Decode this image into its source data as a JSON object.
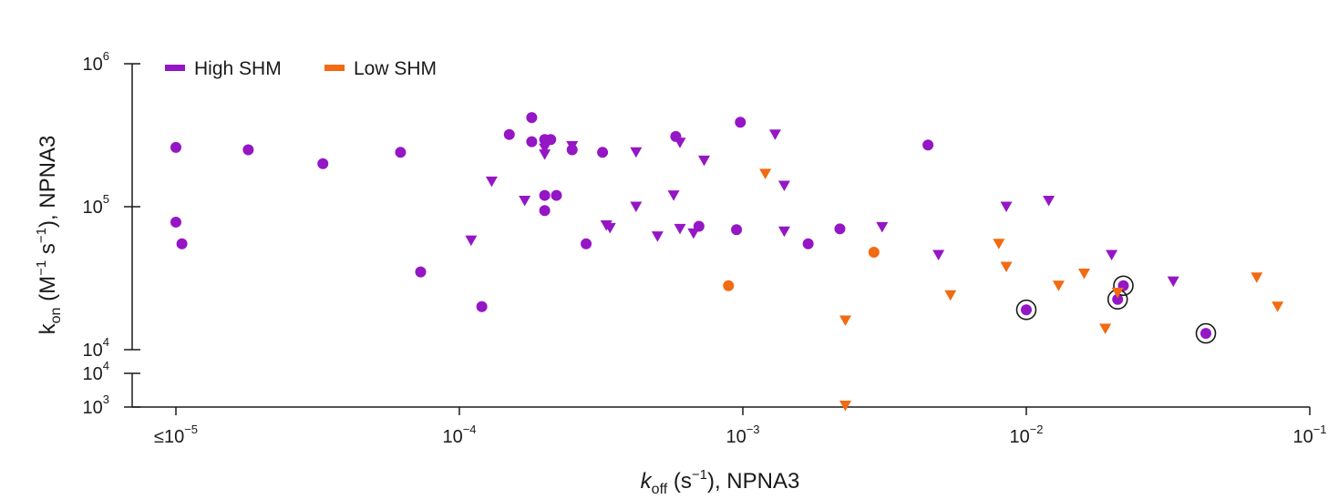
{
  "chart_data": {
    "type": "scatter",
    "xlabel": "k_off (s^-1), NPNA3",
    "xlabel_parts": {
      "k": "k",
      "sub": "off",
      "rest": " (s",
      "sup": "−1",
      "tail": "), NPNA3"
    },
    "ylabel": "k_on (M^-1 s^-1), NPNA3",
    "ylabel_parts": {
      "k": "k",
      "sub": "on",
      "a": " (M",
      "sup1": "−1",
      "b": " s",
      "sup2": "−1",
      "c": "), NPNA3"
    },
    "x_scale": "log",
    "y_scale": "log (broken axis)",
    "xlim": [
      8.5e-06,
      0.1
    ],
    "ylim_upper": [
      10000,
      1000000
    ],
    "ylim_lower": [
      1000,
      10000
    ],
    "x_ticks": [
      {
        "value": 1e-05,
        "prefix": "≤10",
        "exp": "−5"
      },
      {
        "value": 0.0001,
        "prefix": "10",
        "exp": "−4"
      },
      {
        "value": 0.001,
        "prefix": "10",
        "exp": "−3"
      },
      {
        "value": 0.01,
        "prefix": "10",
        "exp": "−2"
      },
      {
        "value": 0.1,
        "prefix": "10",
        "exp": "−1"
      }
    ],
    "y_ticks_upper": [
      {
        "value": 1000000,
        "prefix": "10",
        "exp": "6"
      },
      {
        "value": 100000,
        "prefix": "10",
        "exp": "5"
      },
      {
        "value": 10000,
        "prefix": "10",
        "exp": "4"
      }
    ],
    "y_ticks_lower": [
      {
        "value": 10000,
        "prefix": "10",
        "exp": "4"
      },
      {
        "value": 1000,
        "prefix": "10",
        "exp": "3"
      }
    ],
    "legend_placement": "top-left",
    "series": [
      {
        "name": "High SHM",
        "color": "#9416c5",
        "circles": [
          [
            1e-05,
            260000
          ],
          [
            1e-05,
            78000
          ],
          [
            1.05e-05,
            55000
          ],
          [
            1.8e-05,
            250000
          ],
          [
            3.3e-05,
            200000
          ],
          [
            6.2e-05,
            240000
          ],
          [
            7.3e-05,
            35000
          ],
          [
            0.00012,
            20000
          ],
          [
            0.00015,
            320000
          ],
          [
            0.00018,
            420000
          ],
          [
            0.00018,
            285000
          ],
          [
            0.0002,
            295000
          ],
          [
            0.00021,
            295000
          ],
          [
            0.0002,
            120000
          ],
          [
            0.00022,
            120000
          ],
          [
            0.0002,
            94000
          ],
          [
            0.00025,
            250000
          ],
          [
            0.00028,
            55000
          ],
          [
            0.00032,
            240000
          ],
          [
            0.00058,
            310000
          ],
          [
            0.0007,
            73000
          ],
          [
            0.00095,
            69000
          ],
          [
            0.00098,
            390000
          ],
          [
            0.0017,
            55000
          ],
          [
            0.0022,
            70000
          ],
          [
            0.0045,
            270000
          ],
          [
            0.01,
            19000
          ],
          [
            0.021,
            22500
          ],
          [
            0.022,
            28000
          ],
          [
            0.043,
            13000
          ]
        ],
        "triangles": [
          [
            0.00013,
            150000
          ],
          [
            0.00017,
            110000
          ],
          [
            0.0002,
            255000
          ],
          [
            0.0002,
            232000
          ],
          [
            0.00025,
            265000
          ],
          [
            0.00033,
            74000
          ],
          [
            0.00034,
            71000
          ],
          [
            0.00042,
            240000
          ],
          [
            0.00042,
            100000
          ],
          [
            0.00011,
            58000
          ],
          [
            0.0005,
            62000
          ],
          [
            0.00057,
            120000
          ],
          [
            0.0006,
            280000
          ],
          [
            0.0006,
            70000
          ],
          [
            0.00067,
            65000
          ],
          [
            0.00073,
            210000
          ],
          [
            0.0013,
            320000
          ],
          [
            0.0014,
            140000
          ],
          [
            0.0014,
            67000
          ],
          [
            0.0031,
            72000
          ],
          [
            0.0049,
            46000
          ],
          [
            0.0085,
            100000
          ],
          [
            0.012,
            110000
          ],
          [
            0.02,
            46000
          ],
          [
            0.033,
            30000
          ]
        ],
        "highlighted": [
          [
            0.01,
            19000
          ],
          [
            0.021,
            22500
          ],
          [
            0.022,
            28000
          ],
          [
            0.043,
            13000
          ]
        ]
      },
      {
        "name": "Low SHM",
        "color": "#f26a12",
        "circles": [
          [
            0.00089,
            28000
          ],
          [
            0.0029,
            48000
          ]
        ],
        "triangles": [
          [
            0.0012,
            170000
          ],
          [
            0.0023,
            16000
          ],
          [
            0.0023,
            1100
          ],
          [
            0.0054,
            24000
          ],
          [
            0.008,
            55000
          ],
          [
            0.0085,
            38000
          ],
          [
            0.013,
            28000
          ],
          [
            0.016,
            34000
          ],
          [
            0.019,
            14000
          ],
          [
            0.021,
            25000
          ],
          [
            0.065,
            32000
          ],
          [
            0.077,
            20000
          ]
        ]
      }
    ]
  }
}
